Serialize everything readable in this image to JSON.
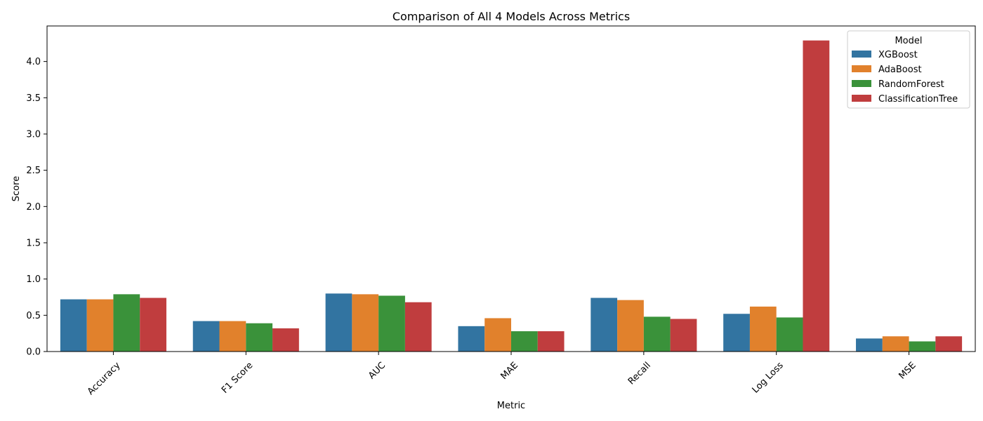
{
  "chart_data": {
    "type": "bar",
    "title": "Comparison of All 4 Models Across Metrics",
    "xlabel": "Metric",
    "ylabel": "Score",
    "ylim": [
      0,
      4.49
    ],
    "yticks": [
      "0.0",
      "0.5",
      "1.0",
      "1.5",
      "2.0",
      "2.5",
      "3.0",
      "3.5",
      "4.0"
    ],
    "categories": [
      "Accuracy",
      "F1 Score",
      "AUC",
      "MAE",
      "Recall",
      "Log Loss",
      "MSE"
    ],
    "series": [
      {
        "name": "XGBoost",
        "color": "#3274a1",
        "values": [
          0.72,
          0.42,
          0.8,
          0.35,
          0.74,
          0.52,
          0.18
        ]
      },
      {
        "name": "AdaBoost",
        "color": "#e1812c",
        "values": [
          0.72,
          0.42,
          0.79,
          0.46,
          0.71,
          0.62,
          0.21
        ]
      },
      {
        "name": "RandomForest",
        "color": "#3a923a",
        "values": [
          0.79,
          0.39,
          0.77,
          0.28,
          0.48,
          0.47,
          0.14
        ]
      },
      {
        "name": "ClassificationTree",
        "color": "#c03d3e",
        "values": [
          0.74,
          0.32,
          0.68,
          0.28,
          0.45,
          4.29,
          0.21
        ]
      }
    ],
    "legend": {
      "title": "Model",
      "position": "top-right"
    },
    "grid": false
  }
}
